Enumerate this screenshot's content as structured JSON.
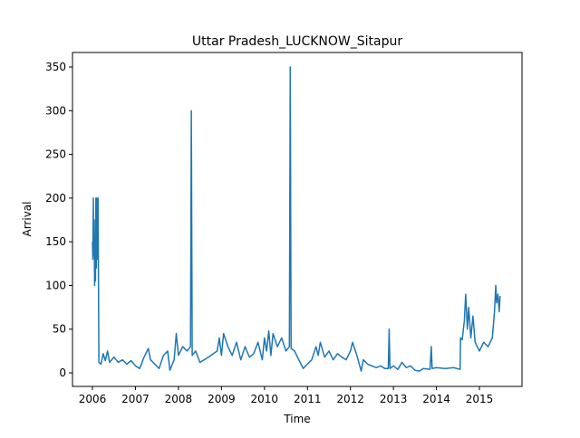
{
  "chart_data": {
    "type": "line",
    "title": "Uttar Pradesh_LUCKNOW_Sitapur",
    "x_label": "Time",
    "y_label": "Arrival",
    "x": [
      2006.0,
      2006.01,
      2006.02,
      2006.03,
      2006.04,
      2006.05,
      2006.06,
      2006.07,
      2006.08,
      2006.09,
      2006.1,
      2006.12,
      2006.13,
      2006.15,
      2006.2,
      2006.25,
      2006.3,
      2006.35,
      2006.4,
      2006.5,
      2006.6,
      2006.7,
      2006.8,
      2006.9,
      2007.0,
      2007.1,
      2007.2,
      2007.3,
      2007.35,
      2007.45,
      2007.55,
      2007.65,
      2007.75,
      2007.8,
      2007.9,
      2007.95,
      2008.0,
      2008.1,
      2008.2,
      2008.28,
      2008.3,
      2008.32,
      2008.4,
      2008.5,
      2008.7,
      2008.9,
      2008.95,
      2009.0,
      2009.05,
      2009.15,
      2009.25,
      2009.35,
      2009.45,
      2009.55,
      2009.65,
      2009.75,
      2009.85,
      2009.95,
      2010.0,
      2010.05,
      2010.1,
      2010.15,
      2010.2,
      2010.3,
      2010.4,
      2010.5,
      2010.58,
      2010.6,
      2010.62,
      2010.7,
      2010.8,
      2010.9,
      2011.0,
      2011.1,
      2011.2,
      2011.25,
      2011.3,
      2011.4,
      2011.5,
      2011.6,
      2011.7,
      2011.8,
      2011.9,
      2012.0,
      2012.05,
      2012.15,
      2012.25,
      2012.3,
      2012.4,
      2012.5,
      2012.6,
      2012.7,
      2012.8,
      2012.88,
      2012.9,
      2012.92,
      2013.0,
      2013.1,
      2013.2,
      2013.3,
      2013.4,
      2013.5,
      2013.6,
      2013.7,
      2013.85,
      2013.88,
      2013.9,
      2014.0,
      2014.2,
      2014.4,
      2014.55,
      2014.56,
      2014.6,
      2014.65,
      2014.68,
      2014.72,
      2014.75,
      2014.8,
      2014.85,
      2014.9,
      2015.0,
      2015.1,
      2015.2,
      2015.3,
      2015.35,
      2015.38,
      2015.4,
      2015.43,
      2015.46,
      2015.48
    ],
    "series": [
      {
        "color": "#1f77b4",
        "values": [
          150,
          130,
          200,
          135,
          175,
          100,
          150,
          105,
          200,
          120,
          200,
          130,
          200,
          12,
          10,
          22,
          14,
          25,
          12,
          18,
          12,
          15,
          10,
          14,
          8,
          5,
          18,
          28,
          15,
          10,
          5,
          20,
          25,
          3,
          15,
          45,
          20,
          30,
          25,
          30,
          300,
          20,
          25,
          12,
          18,
          25,
          40,
          20,
          45,
          30,
          20,
          35,
          15,
          30,
          18,
          22,
          35,
          15,
          40,
          25,
          48,
          20,
          45,
          30,
          40,
          25,
          30,
          350,
          28,
          25,
          15,
          5,
          10,
          15,
          30,
          20,
          35,
          18,
          25,
          15,
          22,
          18,
          15,
          25,
          35,
          20,
          2,
          15,
          10,
          8,
          6,
          8,
          5,
          5,
          50,
          5,
          8,
          4,
          12,
          6,
          8,
          3,
          2,
          5,
          4,
          30,
          5,
          6,
          5,
          6,
          4,
          40,
          38,
          60,
          90,
          50,
          75,
          40,
          65,
          35,
          25,
          35,
          30,
          40,
          70,
          100,
          80,
          90,
          70,
          88
        ]
      }
    ],
    "xlim": [
      2005.536,
      2015.99
    ],
    "xticks": [
      2006,
      2007,
      2008,
      2009,
      2010,
      2011,
      2012,
      2013,
      2014,
      2015
    ],
    "ylim": [
      -15.5,
      366.6
    ],
    "yticks": [
      0,
      50,
      100,
      150,
      200,
      250,
      300,
      350
    ]
  }
}
